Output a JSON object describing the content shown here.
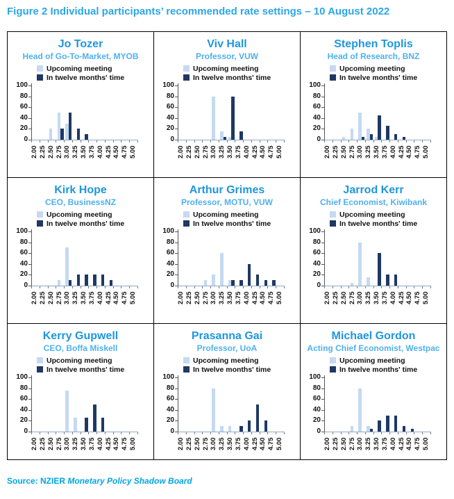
{
  "title": "Figure 2 Individual participants’ recommended rate settings – 10 August 2022",
  "source": {
    "prefix": "Source: NZIER ",
    "italic": "Monetary Policy Shadow Board"
  },
  "colors": {
    "title_blue": "#2BA6E9",
    "name_blue": "#1E96DD",
    "role_blue": "#4FB0EE",
    "source_blue": "#00A5E6",
    "upcoming_bar": "#C5D9F1",
    "twelve_months_bar": "#1F3864"
  },
  "chart_data": {
    "type": "bar",
    "categories": [
      "2.00",
      "2.25",
      "2.50",
      "2.75",
      "3.00",
      "3.25",
      "3.50",
      "3.75",
      "4.00",
      "4.25",
      "4.50",
      "4.75",
      "5.00"
    ],
    "ylim": [
      0,
      100
    ],
    "yticks": [
      0,
      20,
      40,
      60,
      80,
      100
    ],
    "legend": [
      "Upcoming meeting",
      "In twelve months' time"
    ],
    "legend_position": "top-left-inside",
    "grid": false,
    "panels": [
      {
        "name": "Jo Tozer",
        "role": "Head of Go-To-Market, MYOB",
        "series": [
          {
            "name": "Upcoming meeting",
            "values": [
              0,
              0,
              20,
              50,
              30,
              0,
              0,
              0,
              0,
              0,
              0,
              0,
              0
            ]
          },
          {
            "name": "In twelve months' time",
            "values": [
              0,
              0,
              0,
              20,
              50,
              20,
              10,
              0,
              0,
              0,
              0,
              0,
              0
            ]
          }
        ]
      },
      {
        "name": "Viv Hall",
        "role": "Professor, VUW",
        "series": [
          {
            "name": "Upcoming meeting",
            "values": [
              0,
              0,
              0,
              0,
              80,
              15,
              5,
              0,
              0,
              0,
              0,
              0,
              0
            ]
          },
          {
            "name": "In twelve months' time",
            "values": [
              0,
              0,
              0,
              0,
              0,
              5,
              80,
              15,
              0,
              0,
              0,
              0,
              0
            ]
          }
        ]
      },
      {
        "name": "Stephen Toplis",
        "role": "Head of Research, BNZ",
        "series": [
          {
            "name": "Upcoming meeting",
            "values": [
              0,
              0,
              5,
              20,
              50,
              20,
              5,
              0,
              0,
              0,
              0,
              0,
              0
            ]
          },
          {
            "name": "In twelve months' time",
            "values": [
              0,
              0,
              0,
              0,
              5,
              10,
              45,
              25,
              10,
              5,
              0,
              0,
              0
            ]
          }
        ]
      },
      {
        "name": "Kirk Hope",
        "role": "CEO, BusinessNZ",
        "series": [
          {
            "name": "Upcoming meeting",
            "values": [
              0,
              0,
              0,
              10,
              70,
              0,
              0,
              0,
              0,
              0,
              0,
              0,
              0
            ]
          },
          {
            "name": "In twelve months' time",
            "values": [
              0,
              0,
              0,
              0,
              10,
              20,
              20,
              20,
              20,
              10,
              0,
              0,
              0
            ]
          }
        ]
      },
      {
        "name": "Arthur Grimes",
        "role": "Professor, MOTU, VUW",
        "series": [
          {
            "name": "Upcoming meeting",
            "values": [
              0,
              0,
              0,
              10,
              20,
              60,
              10,
              0,
              0,
              0,
              0,
              0,
              0
            ]
          },
          {
            "name": "In twelve months' time",
            "values": [
              0,
              0,
              0,
              0,
              0,
              0,
              10,
              10,
              40,
              20,
              10,
              10,
              0
            ]
          }
        ]
      },
      {
        "name": "Jarrod Kerr",
        "role": "Chief Economist, Kiwibank",
        "series": [
          {
            "name": "Upcoming meeting",
            "values": [
              0,
              0,
              0,
              5,
              80,
              15,
              0,
              0,
              0,
              0,
              0,
              0,
              0
            ]
          },
          {
            "name": "In twelve months' time",
            "values": [
              0,
              0,
              0,
              0,
              0,
              0,
              60,
              20,
              20,
              0,
              0,
              0,
              0
            ]
          }
        ]
      },
      {
        "name": "Kerry Gupwell",
        "role": "CEO, Boffa Miskell",
        "series": [
          {
            "name": "Upcoming meeting",
            "values": [
              0,
              0,
              0,
              0,
              75,
              25,
              0,
              0,
              0,
              0,
              0,
              0,
              0
            ]
          },
          {
            "name": "In twelve months' time",
            "values": [
              0,
              0,
              0,
              0,
              0,
              0,
              25,
              50,
              25,
              0,
              0,
              0,
              0
            ]
          }
        ]
      },
      {
        "name": "Prasanna Gai",
        "role": "Professor, UoA",
        "series": [
          {
            "name": "Upcoming meeting",
            "values": [
              0,
              0,
              0,
              0,
              80,
              10,
              10,
              0,
              0,
              0,
              0,
              0,
              0
            ]
          },
          {
            "name": "In twelve months' time",
            "values": [
              0,
              0,
              0,
              0,
              0,
              0,
              0,
              10,
              20,
              50,
              20,
              0,
              0
            ]
          }
        ]
      },
      {
        "name": "Michael Gordon",
        "role": "Acting Chief Economist, Westpac",
        "series": [
          {
            "name": "Upcoming meeting",
            "values": [
              0,
              0,
              0,
              10,
              80,
              10,
              0,
              0,
              0,
              0,
              0,
              0,
              0
            ]
          },
          {
            "name": "In twelve months' time",
            "values": [
              0,
              0,
              0,
              0,
              0,
              5,
              20,
              30,
              30,
              10,
              5,
              0,
              0
            ]
          }
        ]
      }
    ]
  }
}
